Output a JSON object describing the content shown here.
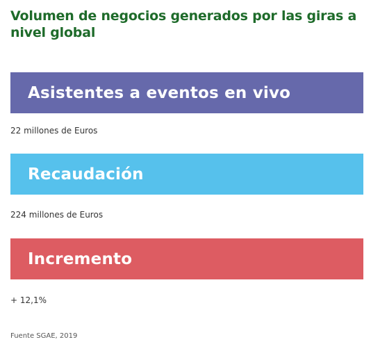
{
  "title": "Volumen de negocios generados por las giras a nivel global",
  "items": [
    {
      "label": "Asistentes a eventos en vivo",
      "value": "22 millones de Euros",
      "color": "#6669ab"
    },
    {
      "label": "Recaudación",
      "value": "224 millones de Euros",
      "color": "#56c1ec"
    },
    {
      "label": "Incremento",
      "value": "+ 12,1%",
      "color": "#dd5c62"
    }
  ],
  "source": "Fuente SGAE, 2019"
}
